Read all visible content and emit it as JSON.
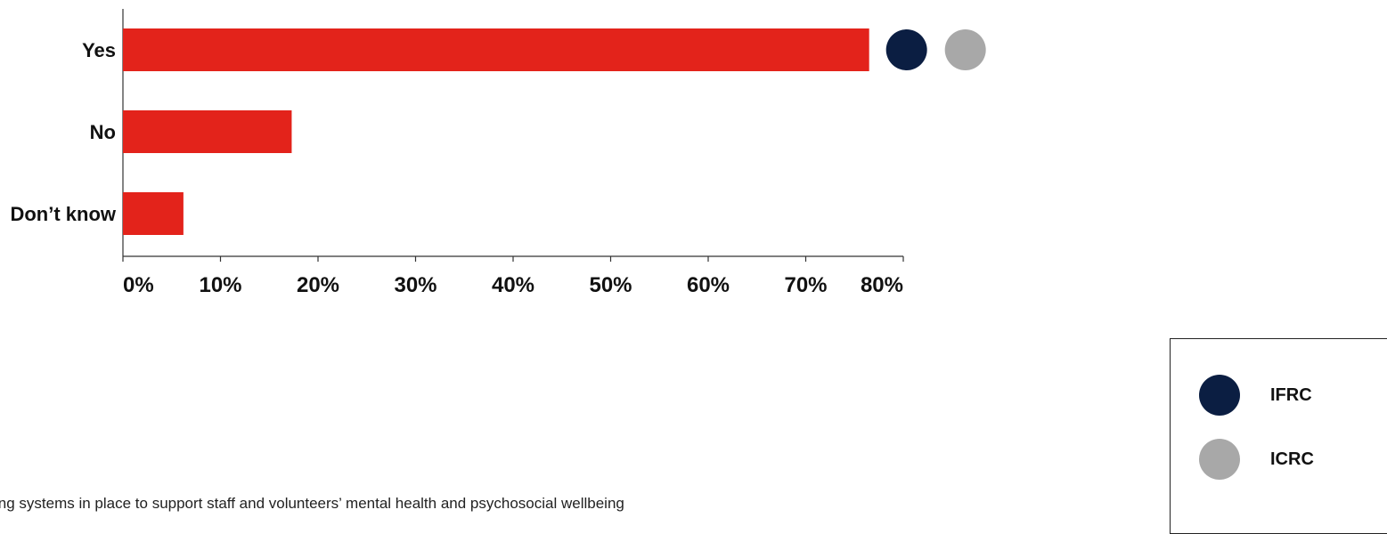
{
  "chart_data": {
    "type": "bar",
    "orientation": "horizontal",
    "categories": [
      "Yes",
      "No",
      "Don’t know"
    ],
    "values": [
      76.5,
      17.3,
      6.2
    ],
    "unit": "%",
    "xlim": [
      0,
      80
    ],
    "xticks": [
      "0%",
      "10%",
      "20%",
      "30%",
      "40%",
      "50%",
      "60%",
      "70%",
      "80%"
    ],
    "bar_color": "#e3231b",
    "grid": false,
    "markers": [
      {
        "category": "Yes",
        "series": "IFRC",
        "color": "#0b1e42"
      },
      {
        "category": "Yes",
        "series": "ICRC",
        "color": "#a8a8a8"
      }
    ],
    "legend": {
      "placement": "bottom-right",
      "items": [
        {
          "label": "IFRC",
          "color": "#0b1e42"
        },
        {
          "label": "ICRC",
          "color": "#a8a8a8"
        }
      ]
    }
  },
  "caption": "ing systems in place to support staff and volunteers’ mental health and psychosocial wellbeing"
}
